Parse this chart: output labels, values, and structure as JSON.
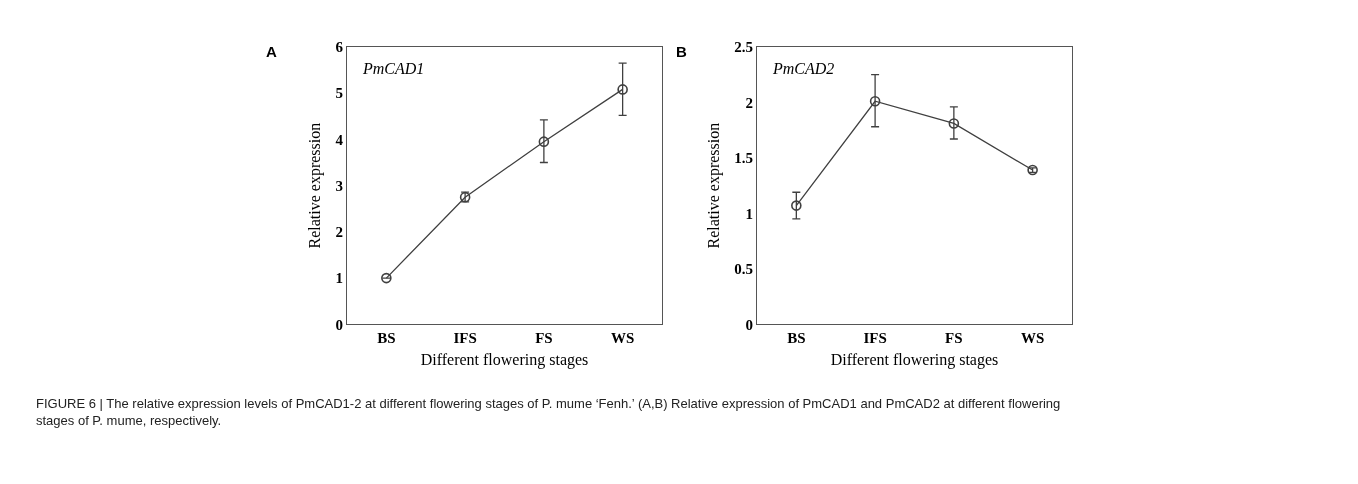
{
  "chart_data": [
    {
      "type": "line",
      "xlabel": "Different flowering stages",
      "ylabel": "Relative expression",
      "categories": [
        "BS",
        "IFS",
        "FS",
        "WS"
      ],
      "series": [
        {
          "color": "#404040",
          "values": [
            1.0,
            2.75,
            3.95,
            5.08
          ],
          "errors": [
            null,
            [
              2.65,
              2.86
            ],
            [
              3.5,
              4.42
            ],
            [
              4.52,
              5.65
            ]
          ]
        }
      ],
      "ylim": [
        0,
        6
      ],
      "yticks": [
        0,
        1,
        2,
        3,
        4,
        5,
        6
      ],
      "marker": "circle",
      "line_style": "solid",
      "annotations": [
        "A",
        "PmCAD1"
      ]
    },
    {
      "type": "line",
      "xlabel": "Different flowering stages",
      "ylabel": "Relative expression",
      "categories": [
        "BS",
        "IFS",
        "FS",
        "WS"
      ],
      "series": [
        {
          "color": "#404040",
          "values": [
            1.07,
            2.01,
            1.81,
            1.39
          ],
          "errors": [
            [
              0.95,
              1.19
            ],
            [
              1.78,
              2.25
            ],
            [
              1.67,
              1.96
            ],
            [
              1.37,
              1.41
            ]
          ]
        }
      ],
      "ylim": [
        0,
        2.5
      ],
      "yticks": [
        0,
        0.5,
        1,
        1.5,
        2,
        2.5
      ],
      "marker": "circle",
      "line_style": "solid",
      "annotations": [
        "B",
        "PmCAD2",
        "FIGURE 6 | The relative expression levels of PmCAD1-2 at different flowering stages of P. mume ‘Fenh.’ (A,B) Relative expression of PmCAD1 and PmCAD2 at different flowering stages of P. mume, respectively."
      ]
    }
  ]
}
